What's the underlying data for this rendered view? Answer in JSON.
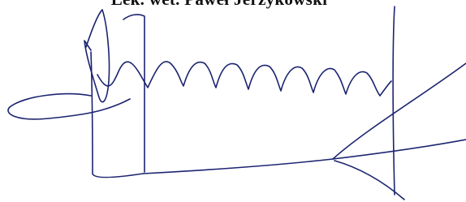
{
  "stamp": {
    "name": "Lek. wet. Paweł Jerzykowski"
  }
}
